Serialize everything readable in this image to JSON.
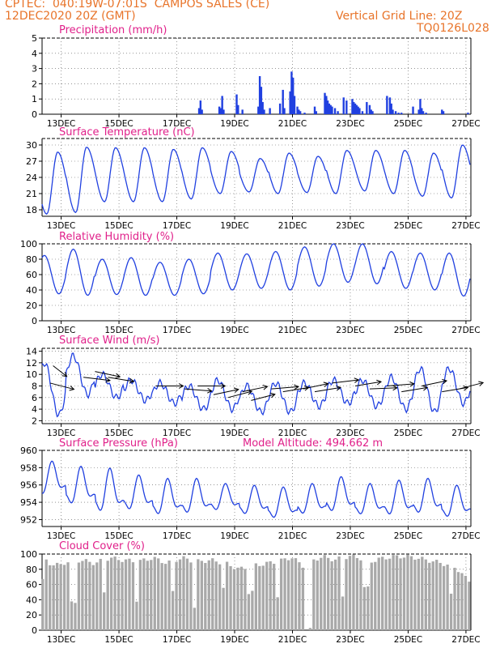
{
  "header": {
    "line1": "CPTEC:  040:19W-07:01S  CAMPOS SALES (CE)",
    "line2": "12DEC2020 20Z (GMT)",
    "grid_note": "Vertical Grid Line: 20Z",
    "run_code": "TQ0126L028"
  },
  "colors": {
    "header": "#e8742a",
    "title": "#e0208a",
    "line": "#2040e0",
    "bar": "#2040e0",
    "cloud": "#a9a9a9",
    "wind_arrow": "#000000"
  },
  "x_axis": {
    "ticks": [
      "13DEC",
      "15DEC",
      "17DEC",
      "19DEC",
      "21DEC",
      "23DEC",
      "25DEC",
      "27DEC"
    ],
    "tick_days": [
      13,
      15,
      17,
      19,
      21,
      23,
      25,
      27
    ],
    "start_day": 12.17,
    "end_day": 27.0
  },
  "chart_data": [
    {
      "id": "precip",
      "type": "bar",
      "title": "Precipitation (mm/h)",
      "ylim": [
        0,
        5
      ],
      "yticks": [
        0,
        1,
        2,
        3,
        4,
        5
      ],
      "x": [
        17.6,
        17.65,
        17.7,
        18.3,
        18.35,
        18.4,
        18.45,
        18.9,
        18.95,
        19.1,
        19.65,
        19.7,
        19.75,
        19.8,
        19.85,
        20.05,
        20.4,
        20.5,
        20.55,
        20.75,
        20.8,
        20.85,
        20.9,
        21.0,
        21.05,
        21.1,
        21.25,
        21.6,
        21.65,
        21.95,
        22.0,
        22.05,
        22.1,
        22.15,
        22.2,
        22.3,
        22.4,
        22.6,
        22.7,
        22.9,
        22.95,
        23.0,
        23.05,
        23.1,
        23.15,
        23.25,
        23.4,
        23.5,
        23.55,
        23.6,
        24.1,
        24.2,
        24.25,
        24.3,
        24.4,
        24.5,
        24.6,
        25.0,
        25.2,
        25.25,
        25.3,
        25.35,
        25.45,
        26.0,
        26.05,
        26.9
      ],
      "values": [
        0.4,
        0.9,
        0.3,
        0.5,
        0.4,
        1.2,
        0.3,
        1.3,
        0.6,
        0.3,
        0.5,
        2.5,
        1.8,
        0.8,
        0.3,
        0.4,
        0.7,
        1.6,
        0.4,
        1.5,
        2.8,
        2.4,
        1.2,
        0.5,
        0.3,
        0.2,
        0.1,
        0.5,
        0.2,
        1.4,
        1.2,
        0.9,
        0.7,
        0.6,
        0.5,
        0.4,
        0.2,
        1.1,
        0.9,
        1.0,
        0.8,
        0.7,
        0.6,
        0.5,
        0.4,
        0.2,
        0.8,
        0.6,
        0.3,
        0.2,
        1.2,
        1.1,
        0.7,
        0.3,
        0.2,
        0.1,
        0.1,
        0.5,
        0.3,
        1.0,
        0.4,
        0.2,
        0.1,
        0.3,
        0.2,
        0.1
      ]
    },
    {
      "id": "temp",
      "type": "line",
      "title": "Surface Temperature (nC)",
      "ylim": [
        16.8,
        31.2
      ],
      "yticks": [
        18,
        21,
        24,
        27,
        30
      ],
      "min": [
        17.2,
        17.5,
        19.5,
        19.5,
        19.5,
        20.0,
        21.0,
        21.3,
        21.0,
        21.2,
        21.0,
        21.5,
        21.0,
        20.5,
        20.2
      ],
      "max": [
        28.7,
        29.6,
        29.5,
        29.5,
        29.2,
        29.5,
        28.8,
        27.5,
        28.5,
        27.9,
        29.0,
        29.0,
        29.0,
        28.5,
        30.0
      ]
    },
    {
      "id": "humidity",
      "type": "line",
      "title": "Relative Humidity (%)",
      "ylim": [
        0,
        100
      ],
      "yticks": [
        0,
        20,
        40,
        60,
        80,
        100
      ],
      "min": [
        35,
        33,
        34,
        33,
        33,
        35,
        40,
        42,
        40,
        45,
        50,
        48,
        42,
        40,
        32
      ],
      "max": [
        85,
        93,
        80,
        82,
        76,
        80,
        88,
        87,
        90,
        96,
        100,
        100,
        90,
        88,
        88
      ]
    },
    {
      "id": "wind",
      "type": "line",
      "title": "Surface Wind (m/s)",
      "ylim": [
        1.5,
        14.5
      ],
      "yticks": [
        2,
        4,
        6,
        8,
        10,
        12,
        14
      ],
      "min": [
        3.0,
        6.5,
        6.0,
        5.5,
        5.0,
        4.0,
        4.0,
        3.5,
        3.5,
        4.5,
        5.0,
        4.5,
        4.0,
        3.5,
        5.0
      ],
      "max": [
        12,
        13.2,
        10,
        9,
        8.5,
        8,
        9,
        8,
        8.5,
        8.5,
        9,
        9,
        9.5,
        11,
        11
      ]
    },
    {
      "id": "pressure",
      "type": "line",
      "title": "Surface Pressure (hPa)",
      "annotation": "Model Altitude: 494.662 m",
      "ylim": [
        951.2,
        960
      ],
      "yticks": [
        952,
        954,
        956,
        958,
        960
      ],
      "min": [
        954.2,
        953.0,
        952.0,
        952.4,
        951.8,
        952.0,
        952.5,
        952.0,
        951.5,
        952.0,
        952.2,
        951.9,
        951.8,
        952.0,
        951.6
      ],
      "max": [
        958.8,
        958.2,
        958.0,
        957.2,
        956.8,
        956.8,
        956.2,
        956.0,
        955.8,
        956.2,
        957.0,
        956.2,
        956.6,
        956.8,
        956.0
      ]
    },
    {
      "id": "cloud",
      "type": "bar",
      "title": "Cloud Cover (%)",
      "ylim": [
        0,
        100
      ],
      "yticks": [
        0,
        20,
        40,
        60,
        80,
        100
      ],
      "profile": [
        [
          12.2,
          95
        ],
        [
          12.4,
          88
        ],
        [
          12.8,
          85
        ],
        [
          13.0,
          90
        ],
        [
          13.5,
          92
        ],
        [
          14.0,
          88
        ],
        [
          14.5,
          95
        ],
        [
          15.0,
          92
        ],
        [
          15.5,
          90
        ],
        [
          16.0,
          95
        ],
        [
          16.5,
          88
        ],
        [
          17.0,
          95
        ],
        [
          17.5,
          90
        ],
        [
          18.0,
          92
        ],
        [
          18.5,
          88
        ],
        [
          19.0,
          80
        ],
        [
          19.5,
          85
        ],
        [
          20.0,
          88
        ],
        [
          20.5,
          92
        ],
        [
          20.8,
          96
        ],
        [
          21.0,
          90
        ],
        [
          21.3,
          82
        ],
        [
          21.6,
          94
        ],
        [
          22.0,
          96
        ],
        [
          22.3,
          92
        ],
        [
          22.6,
          96
        ],
        [
          23.0,
          97
        ],
        [
          23.5,
          90
        ],
        [
          24.0,
          95
        ],
        [
          24.5,
          97
        ],
        [
          25.0,
          96
        ],
        [
          25.5,
          92
        ],
        [
          26.0,
          88
        ],
        [
          26.5,
          82
        ],
        [
          26.9,
          65
        ]
      ],
      "gaps": [
        [
          13.1,
          13.35,
          35
        ],
        [
          14.2,
          14.35,
          50
        ],
        [
          15.4,
          15.55,
          40
        ],
        [
          16.6,
          16.75,
          50
        ],
        [
          17.4,
          17.55,
          30
        ],
        [
          18.4,
          18.5,
          55
        ],
        [
          19.3,
          19.5,
          50
        ],
        [
          20.2,
          20.35,
          45
        ],
        [
          21.2,
          21.55,
          0
        ],
        [
          22.45,
          22.6,
          45
        ],
        [
          23.3,
          23.45,
          55
        ],
        [
          24.2,
          24.3,
          60
        ],
        [
          25.2,
          25.3,
          55
        ],
        [
          26.2,
          26.35,
          45
        ]
      ]
    }
  ],
  "wind_arrows": [
    {
      "day": 12.45,
      "speed": 8.5,
      "dir": 300
    },
    {
      "day": 12.55,
      "speed": 11.5,
      "dir": 330
    },
    {
      "day": 13.6,
      "speed": 9.5,
      "dir": 285
    },
    {
      "day": 14.0,
      "speed": 10.5,
      "dir": 295
    },
    {
      "day": 14.45,
      "speed": 9.5,
      "dir": 290
    },
    {
      "day": 16.1,
      "speed": 8.0,
      "dir": 270
    },
    {
      "day": 17.1,
      "speed": 7.5,
      "dir": 280
    },
    {
      "day": 17.55,
      "speed": 8.0,
      "dir": 270
    },
    {
      "day": 18.1,
      "speed": 6.5,
      "dir": 245
    },
    {
      "day": 18.6,
      "speed": 6.0,
      "dir": 240
    },
    {
      "day": 19.1,
      "speed": 7.0,
      "dir": 245
    },
    {
      "day": 19.4,
      "speed": 5.5,
      "dir": 240
    },
    {
      "day": 20.1,
      "speed": 7.5,
      "dir": 260
    },
    {
      "day": 20.5,
      "speed": 7.0,
      "dir": 250
    },
    {
      "day": 21.2,
      "speed": 7.5,
      "dir": 245
    },
    {
      "day": 21.6,
      "speed": 7.0,
      "dir": 250
    },
    {
      "day": 22.2,
      "speed": 8.5,
      "dir": 255
    },
    {
      "day": 23.0,
      "speed": 8.0,
      "dir": 250
    },
    {
      "day": 23.5,
      "speed": 7.5,
      "dir": 265
    },
    {
      "day": 24.1,
      "speed": 8.0,
      "dir": 260
    },
    {
      "day": 24.6,
      "speed": 7.0,
      "dir": 250
    },
    {
      "day": 25.3,
      "speed": 8.0,
      "dir": 245
    },
    {
      "day": 26.0,
      "speed": 7.0,
      "dir": 250
    },
    {
      "day": 26.6,
      "speed": 7.5,
      "dir": 240
    }
  ]
}
